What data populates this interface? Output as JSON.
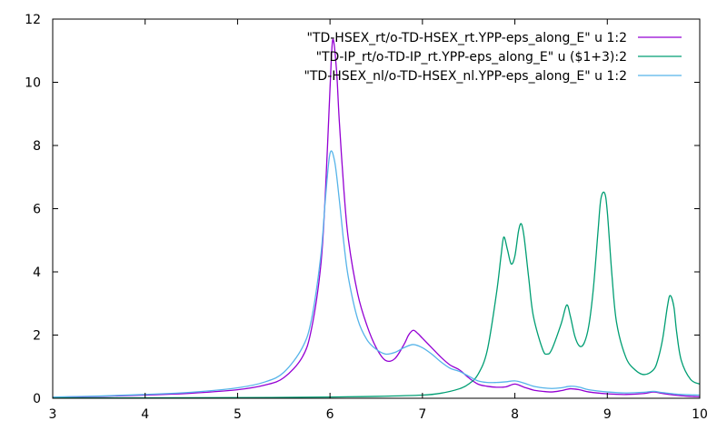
{
  "chart_data": {
    "type": "line",
    "xlim": [
      3,
      10
    ],
    "ylim": [
      0,
      12
    ],
    "x_ticks": [
      "3",
      "4",
      "5",
      "6",
      "7",
      "8",
      "9",
      "10"
    ],
    "y_ticks": [
      "0",
      "2",
      "4",
      "6",
      "8",
      "10",
      "12"
    ],
    "x_tick_values": [
      3,
      4,
      5,
      6,
      7,
      8,
      9,
      10
    ],
    "y_tick_values": [
      0,
      2,
      4,
      6,
      8,
      10,
      12
    ],
    "grid": false,
    "legend_position": "top-right",
    "series": [
      {
        "name": "\"TD-HSEX_rt/o-TD-HSEX_rt.YPP-eps_along_E\" u 1:2",
        "color": "#9400d3",
        "x": [
          3.0,
          3.5,
          4.0,
          4.5,
          5.0,
          5.3,
          5.5,
          5.7,
          5.8,
          5.9,
          5.95,
          6.0,
          6.03,
          6.07,
          6.1,
          6.15,
          6.2,
          6.3,
          6.4,
          6.5,
          6.6,
          6.7,
          6.8,
          6.85,
          6.9,
          6.95,
          7.0,
          7.1,
          7.2,
          7.3,
          7.4,
          7.5,
          7.6,
          7.7,
          7.8,
          7.9,
          8.0,
          8.1,
          8.2,
          8.3,
          8.4,
          8.5,
          8.6,
          8.7,
          8.8,
          9.0,
          9.2,
          9.4,
          9.5,
          9.6,
          9.8,
          10.0
        ],
        "y": [
          0.03,
          0.06,
          0.1,
          0.16,
          0.27,
          0.42,
          0.65,
          1.3,
          2.2,
          4.2,
          6.5,
          9.8,
          11.35,
          10.4,
          8.8,
          6.6,
          5.0,
          3.3,
          2.3,
          1.6,
          1.2,
          1.25,
          1.7,
          2.0,
          2.15,
          2.05,
          1.9,
          1.6,
          1.3,
          1.05,
          0.9,
          0.65,
          0.45,
          0.38,
          0.35,
          0.36,
          0.45,
          0.35,
          0.26,
          0.22,
          0.2,
          0.24,
          0.3,
          0.27,
          0.2,
          0.14,
          0.12,
          0.15,
          0.2,
          0.15,
          0.08,
          0.05
        ]
      },
      {
        "name": "\"TD-IP_rt/o-TD-IP_rt.YPP-eps_along_E\" u ($1+3):2",
        "color": "#009e73",
        "x": [
          3.0,
          4.0,
          5.0,
          6.0,
          6.5,
          7.0,
          7.2,
          7.4,
          7.5,
          7.6,
          7.7,
          7.8,
          7.85,
          7.88,
          7.92,
          7.96,
          8.0,
          8.04,
          8.07,
          8.1,
          8.15,
          8.2,
          8.3,
          8.35,
          8.4,
          8.5,
          8.56,
          8.6,
          8.65,
          8.7,
          8.75,
          8.8,
          8.85,
          8.9,
          8.93,
          8.97,
          9.0,
          9.05,
          9.1,
          9.2,
          9.3,
          9.4,
          9.5,
          9.55,
          9.6,
          9.65,
          9.68,
          9.72,
          9.75,
          9.8,
          9.9,
          10.0
        ],
        "y": [
          0.01,
          0.015,
          0.02,
          0.04,
          0.06,
          0.1,
          0.16,
          0.3,
          0.45,
          0.75,
          1.5,
          3.3,
          4.5,
          5.1,
          4.7,
          4.25,
          4.5,
          5.3,
          5.52,
          5.1,
          3.8,
          2.6,
          1.55,
          1.4,
          1.55,
          2.35,
          2.95,
          2.6,
          1.95,
          1.65,
          1.75,
          2.3,
          3.5,
          5.3,
          6.3,
          6.5,
          5.9,
          3.9,
          2.4,
          1.3,
          0.9,
          0.75,
          0.9,
          1.25,
          1.9,
          2.9,
          3.25,
          2.9,
          2.1,
          1.2,
          0.6,
          0.45
        ]
      },
      {
        "name": "\"TD-HSEX_nl/o-TD-HSEX_nl.YPP-eps_along_E\" u 1:2",
        "color": "#56b4e9",
        "x": [
          3.0,
          3.5,
          4.0,
          4.5,
          5.0,
          5.3,
          5.5,
          5.7,
          5.8,
          5.9,
          5.95,
          6.0,
          6.05,
          6.1,
          6.15,
          6.2,
          6.3,
          6.4,
          6.5,
          6.6,
          6.7,
          6.8,
          6.9,
          7.0,
          7.1,
          7.2,
          7.3,
          7.4,
          7.5,
          7.6,
          7.7,
          7.8,
          7.9,
          8.0,
          8.1,
          8.2,
          8.3,
          8.4,
          8.5,
          8.6,
          8.7,
          8.8,
          9.0,
          9.2,
          9.4,
          9.5,
          9.6,
          9.8,
          10.0
        ],
        "y": [
          0.04,
          0.07,
          0.12,
          0.19,
          0.33,
          0.52,
          0.82,
          1.6,
          2.5,
          4.5,
          6.3,
          7.75,
          7.5,
          6.3,
          4.9,
          3.8,
          2.5,
          1.85,
          1.55,
          1.4,
          1.45,
          1.6,
          1.7,
          1.6,
          1.4,
          1.15,
          0.95,
          0.85,
          0.7,
          0.55,
          0.5,
          0.5,
          0.52,
          0.55,
          0.48,
          0.38,
          0.33,
          0.31,
          0.33,
          0.38,
          0.35,
          0.27,
          0.2,
          0.17,
          0.19,
          0.22,
          0.18,
          0.12,
          0.1
        ]
      }
    ]
  }
}
